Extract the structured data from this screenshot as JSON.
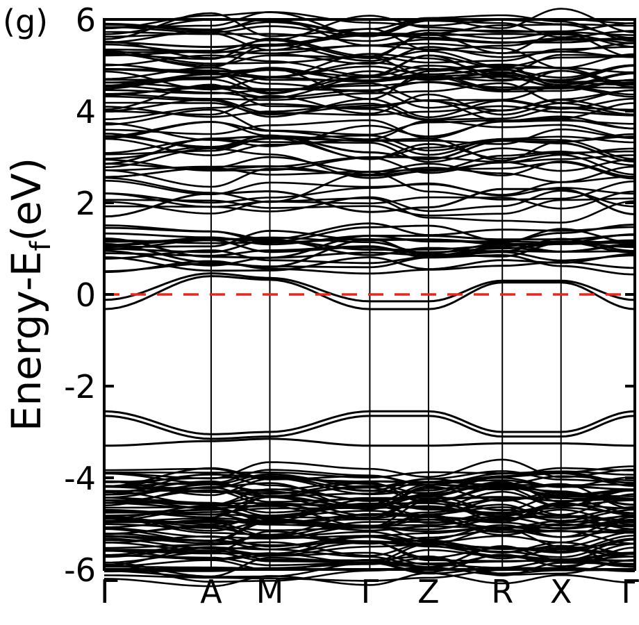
{
  "panel_label": "(g)",
  "chart_data": {
    "type": "line",
    "title": "",
    "xlabel": "",
    "ylabel_main": "Energy-E",
    "ylabel_sub": "f",
    "ylabel_tail": "(eV)",
    "ylim": [
      -6,
      6
    ],
    "yticks": [
      -6,
      -4,
      -2,
      0,
      2,
      4,
      6
    ],
    "ytick_labels": [
      "-6",
      "-4",
      "-2",
      "0",
      "2",
      "4",
      "6"
    ],
    "kpoints": [
      "Γ",
      "A",
      "M",
      "Γ",
      "Z",
      "R",
      "X",
      "Γ"
    ],
    "kpath_distance": [
      0,
      1.84,
      2.85,
      4.57,
      5.58,
      6.85,
      7.86,
      9.13
    ],
    "fermi_level": 0,
    "fermi_color": "#e8261e",
    "band_color": "#000000",
    "grid": false,
    "highlighted_bands": [
      {
        "name": "",
        "values": [
          -0.32,
          0.4,
          0.32,
          -0.32,
          -0.32,
          0.26,
          0.26,
          -0.32
        ]
      },
      {
        "name": "",
        "values": [
          -0.12,
          0.46,
          0.36,
          -0.15,
          -0.15,
          0.3,
          0.3,
          -0.12
        ]
      },
      {
        "name": "",
        "values": [
          -2.55,
          -3.05,
          -3.0,
          -2.55,
          -2.55,
          -3.0,
          -3.0,
          -2.55
        ]
      },
      {
        "name": "",
        "values": [
          -2.65,
          -3.15,
          -3.1,
          -2.65,
          -2.65,
          -3.1,
          -3.1,
          -2.65
        ]
      },
      {
        "name": "",
        "values": [
          -3.3,
          -3.2,
          -3.15,
          -3.3,
          -3.3,
          -3.25,
          -3.25,
          -3.3
        ]
      },
      {
        "name": "",
        "values": [
          1.22,
          0.82,
          0.8,
          1.28,
          1.28,
          1.2,
          1.2,
          1.3
        ]
      },
      {
        "name": "",
        "values": [
          1.1,
          0.7,
          0.6,
          1.2,
          1.2,
          1.1,
          1.1,
          1.18
        ]
      },
      {
        "name": "",
        "values": [
          1.7,
          2.2,
          2.25,
          1.8,
          1.9,
          2.3,
          2.3,
          1.75
        ]
      },
      {
        "name": "",
        "values": [
          2.85,
          3.4,
          3.45,
          3.1,
          2.95,
          3.35,
          3.3,
          2.9
        ]
      },
      {
        "name": "",
        "values": [
          5.5,
          5.4,
          5.45,
          5.7,
          5.6,
          5.5,
          5.5,
          5.6
        ]
      }
    ],
    "conduction_band_window": [
      0.5,
      6.0
    ],
    "valence_band_window": [
      -6.0,
      -3.3
    ]
  }
}
